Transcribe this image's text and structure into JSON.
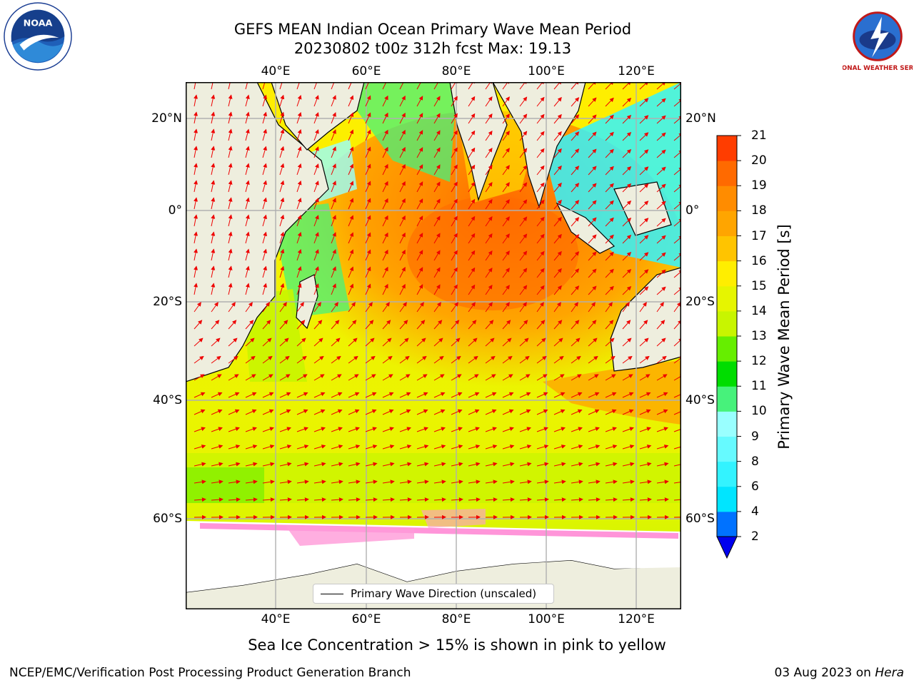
{
  "title_line1": "GEFS MEAN Indian Ocean Primary Wave Mean Period",
  "title_line2": "20230802 t00z 312h fcst   Max: 19.13",
  "lon_ticks": [
    "40°E",
    "60°E",
    "80°E",
    "100°E",
    "120°E"
  ],
  "lat_ticks": [
    "20°N",
    "0°",
    "20°S",
    "40°S",
    "60°S"
  ],
  "legend_label": "Primary Wave Direction (unscaled)",
  "colorbar": {
    "label": "Primary Wave Mean Period [s]",
    "ticks": [
      "2",
      "4",
      "6",
      "8",
      "9",
      "10",
      "11",
      "12",
      "13",
      "14",
      "15",
      "16",
      "17",
      "18",
      "19",
      "20",
      "21"
    ],
    "colors": [
      "#0072ff",
      "#00e5ff",
      "#33f3ff",
      "#66faff",
      "#99ffff",
      "#47f27b",
      "#00dd00",
      "#66ee00",
      "#c8f500",
      "#e6f500",
      "#ffee00",
      "#ffc400",
      "#ffa500",
      "#ff8c00",
      "#ff6a00",
      "#ff3d00",
      "#ff0000"
    ],
    "under_color": "#0000ee"
  },
  "ice_note": "Sea Ice Concentration > 15% is shown in pink to yellow",
  "footer_left": "NCEP/EMC/Verification Post Processing Product Generation Branch",
  "footer_date": "03 Aug 2023 on",
  "footer_host": "Hera",
  "logos": {
    "noaa": "NOAA",
    "nws": "NATIONAL WEATHER SERVICE"
  },
  "map_colors": {
    "land": "#eeeede",
    "arrow": "#ee0000",
    "grid": "#b0b0b0"
  }
}
